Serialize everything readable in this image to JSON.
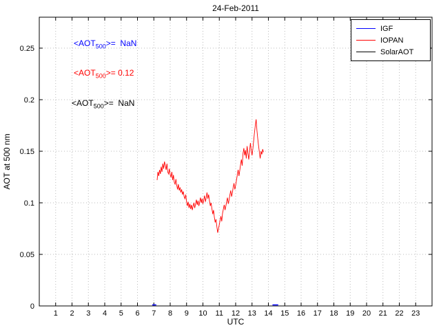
{
  "title": "24-Feb-2011",
  "annotations": [
    {
      "prefix": "<AOT",
      "sub": "500",
      "suffix": ">=  NaN",
      "color": "#0000ff"
    },
    {
      "prefix": "<AOT",
      "sub": "500",
      "suffix": ">= 0.12",
      "color": "#ff0000"
    },
    {
      "prefix": "<AOT",
      "sub": "500",
      "suffix": ">=  NaN",
      "color": "#000000"
    }
  ],
  "legend": {
    "entries": [
      {
        "label": "IGF",
        "color": "#0000ff"
      },
      {
        "label": "IOPAN",
        "color": "#ff0000"
      },
      {
        "label": "SolarAOT",
        "color": "#000000"
      }
    ]
  },
  "chart_data": {
    "type": "line",
    "title": "24-Feb-2011",
    "xlabel": "UTC",
    "ylabel": "AOT at 500 nm",
    "xlim": [
      0,
      24
    ],
    "ylim": [
      0,
      0.28
    ],
    "xticks": [
      1,
      2,
      3,
      4,
      5,
      6,
      7,
      8,
      9,
      10,
      11,
      12,
      13,
      14,
      15,
      16,
      17,
      18,
      19,
      20,
      21,
      22,
      23
    ],
    "yticks": [
      0,
      0.05,
      0.1,
      0.15,
      0.2,
      0.25
    ],
    "ytick_labels": [
      "0",
      "0.05",
      "0.1",
      "0.15",
      "0.2",
      "0.25"
    ],
    "grid": true,
    "legend_position": "top-right",
    "series": [
      {
        "name": "IGF",
        "color": "#0000ff",
        "mean_aot_500": "NaN",
        "points": []
      },
      {
        "name": "IOPAN",
        "color": "#ff0000",
        "mean_aot_500": "0.12",
        "points": [
          [
            7.2,
            0.122
          ],
          [
            7.25,
            0.13
          ],
          [
            7.3,
            0.126
          ],
          [
            7.35,
            0.132
          ],
          [
            7.4,
            0.128
          ],
          [
            7.45,
            0.135
          ],
          [
            7.5,
            0.13
          ],
          [
            7.55,
            0.138
          ],
          [
            7.6,
            0.133
          ],
          [
            7.65,
            0.14
          ],
          [
            7.7,
            0.136
          ],
          [
            7.75,
            0.132
          ],
          [
            7.8,
            0.138
          ],
          [
            7.85,
            0.13
          ],
          [
            7.9,
            0.128
          ],
          [
            7.95,
            0.133
          ],
          [
            8.0,
            0.127
          ],
          [
            8.05,
            0.125
          ],
          [
            8.1,
            0.13
          ],
          [
            8.15,
            0.122
          ],
          [
            8.2,
            0.127
          ],
          [
            8.25,
            0.12
          ],
          [
            8.3,
            0.118
          ],
          [
            8.35,
            0.123
          ],
          [
            8.4,
            0.117
          ],
          [
            8.45,
            0.113
          ],
          [
            8.5,
            0.118
          ],
          [
            8.55,
            0.112
          ],
          [
            8.6,
            0.115
          ],
          [
            8.65,
            0.11
          ],
          [
            8.7,
            0.113
          ],
          [
            8.75,
            0.108
          ],
          [
            8.8,
            0.111
          ],
          [
            8.85,
            0.106
          ],
          [
            8.9,
            0.104
          ],
          [
            8.95,
            0.108
          ],
          [
            9.0,
            0.101
          ],
          [
            9.05,
            0.097
          ],
          [
            9.1,
            0.101
          ],
          [
            9.15,
            0.095
          ],
          [
            9.2,
            0.099
          ],
          [
            9.25,
            0.094
          ],
          [
            9.3,
            0.098
          ],
          [
            9.35,
            0.093
          ],
          [
            9.4,
            0.097
          ],
          [
            9.45,
            0.1
          ],
          [
            9.5,
            0.095
          ],
          [
            9.55,
            0.099
          ],
          [
            9.6,
            0.103
          ],
          [
            9.65,
            0.098
          ],
          [
            9.7,
            0.102
          ],
          [
            9.75,
            0.097
          ],
          [
            9.8,
            0.101
          ],
          [
            9.85,
            0.105
          ],
          [
            9.9,
            0.1
          ],
          [
            9.95,
            0.104
          ],
          [
            10.0,
            0.099
          ],
          [
            10.05,
            0.103
          ],
          [
            10.1,
            0.107
          ],
          [
            10.15,
            0.101
          ],
          [
            10.2,
            0.105
          ],
          [
            10.25,
            0.11
          ],
          [
            10.3,
            0.104
          ],
          [
            10.35,
            0.108
          ],
          [
            10.4,
            0.102
          ],
          [
            10.45,
            0.097
          ],
          [
            10.5,
            0.1
          ],
          [
            10.55,
            0.094
          ],
          [
            10.6,
            0.089
          ],
          [
            10.65,
            0.093
          ],
          [
            10.7,
            0.086
          ],
          [
            10.75,
            0.081
          ],
          [
            10.8,
            0.084
          ],
          [
            10.85,
            0.077
          ],
          [
            10.9,
            0.071
          ],
          [
            10.95,
            0.075
          ],
          [
            11.0,
            0.079
          ],
          [
            11.05,
            0.083
          ],
          [
            11.1,
            0.087
          ],
          [
            11.15,
            0.082
          ],
          [
            11.2,
            0.09
          ],
          [
            11.25,
            0.094
          ],
          [
            11.3,
            0.098
          ],
          [
            11.35,
            0.093
          ],
          [
            11.4,
            0.097
          ],
          [
            11.45,
            0.101
          ],
          [
            11.5,
            0.105
          ],
          [
            11.55,
            0.099
          ],
          [
            11.6,
            0.103
          ],
          [
            11.65,
            0.108
          ],
          [
            11.7,
            0.112
          ],
          [
            11.75,
            0.106
          ],
          [
            11.8,
            0.11
          ],
          [
            11.85,
            0.115
          ],
          [
            11.9,
            0.119
          ],
          [
            11.95,
            0.113
          ],
          [
            12.0,
            0.117
          ],
          [
            12.05,
            0.122
          ],
          [
            12.1,
            0.127
          ],
          [
            12.15,
            0.132
          ],
          [
            12.2,
            0.126
          ],
          [
            12.25,
            0.131
          ],
          [
            12.3,
            0.137
          ],
          [
            12.35,
            0.142
          ],
          [
            12.4,
            0.136
          ],
          [
            12.45,
            0.148
          ],
          [
            12.5,
            0.153
          ],
          [
            12.55,
            0.146
          ],
          [
            12.6,
            0.151
          ],
          [
            12.65,
            0.143
          ],
          [
            12.7,
            0.155
          ],
          [
            12.75,
            0.148
          ],
          [
            12.8,
            0.142
          ],
          [
            12.85,
            0.15
          ],
          [
            12.9,
            0.158
          ],
          [
            12.95,
            0.151
          ],
          [
            13.0,
            0.146
          ],
          [
            13.05,
            0.152
          ],
          [
            13.1,
            0.16
          ],
          [
            13.15,
            0.168
          ],
          [
            13.2,
            0.175
          ],
          [
            13.25,
            0.181
          ],
          [
            13.3,
            0.17
          ],
          [
            13.35,
            0.162
          ],
          [
            13.4,
            0.155
          ],
          [
            13.45,
            0.149
          ],
          [
            13.5,
            0.143
          ],
          [
            13.55,
            0.15
          ],
          [
            13.6,
            0.147
          ],
          [
            13.65,
            0.152
          ],
          [
            13.7,
            0.149
          ]
        ]
      },
      {
        "name": "SolarAOT",
        "color": "#000000",
        "mean_aot_500": "NaN",
        "points": []
      }
    ],
    "baseline_marks": [
      {
        "color": "#0000ff",
        "x1": 6.9,
        "x2": 7.15,
        "y": 0.001
      },
      {
        "color": "#0000ff",
        "x1": 14.25,
        "x2": 14.6,
        "y": 0.001
      }
    ]
  }
}
